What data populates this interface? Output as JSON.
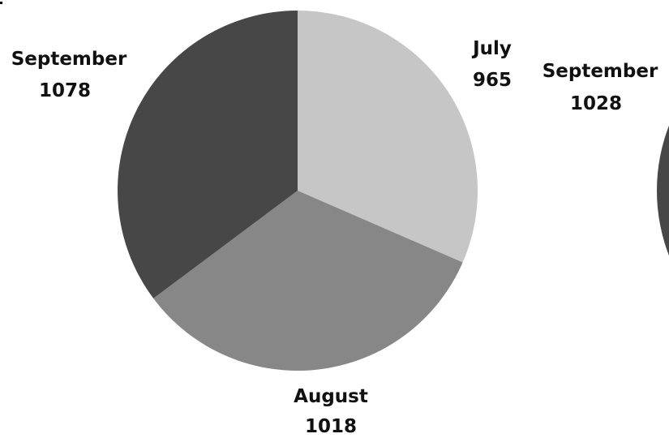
{
  "chart_data": [
    {
      "type": "pie",
      "series": [
        {
          "slices": [
            {
              "label": "July",
              "value": 965,
              "color": "#c6c6c6"
            },
            {
              "label": "August",
              "value": 1018,
              "color": "#878787"
            },
            {
              "label": "September",
              "value": 1078,
              "color": "#474747"
            }
          ]
        }
      ],
      "start": "12 o'clock",
      "direction": "clockwise"
    },
    {
      "type": "pie",
      "partially_visible": true,
      "series": [
        {
          "slices": [
            {
              "label": "September",
              "value": 1028,
              "color": "#474747"
            }
          ]
        }
      ]
    }
  ]
}
